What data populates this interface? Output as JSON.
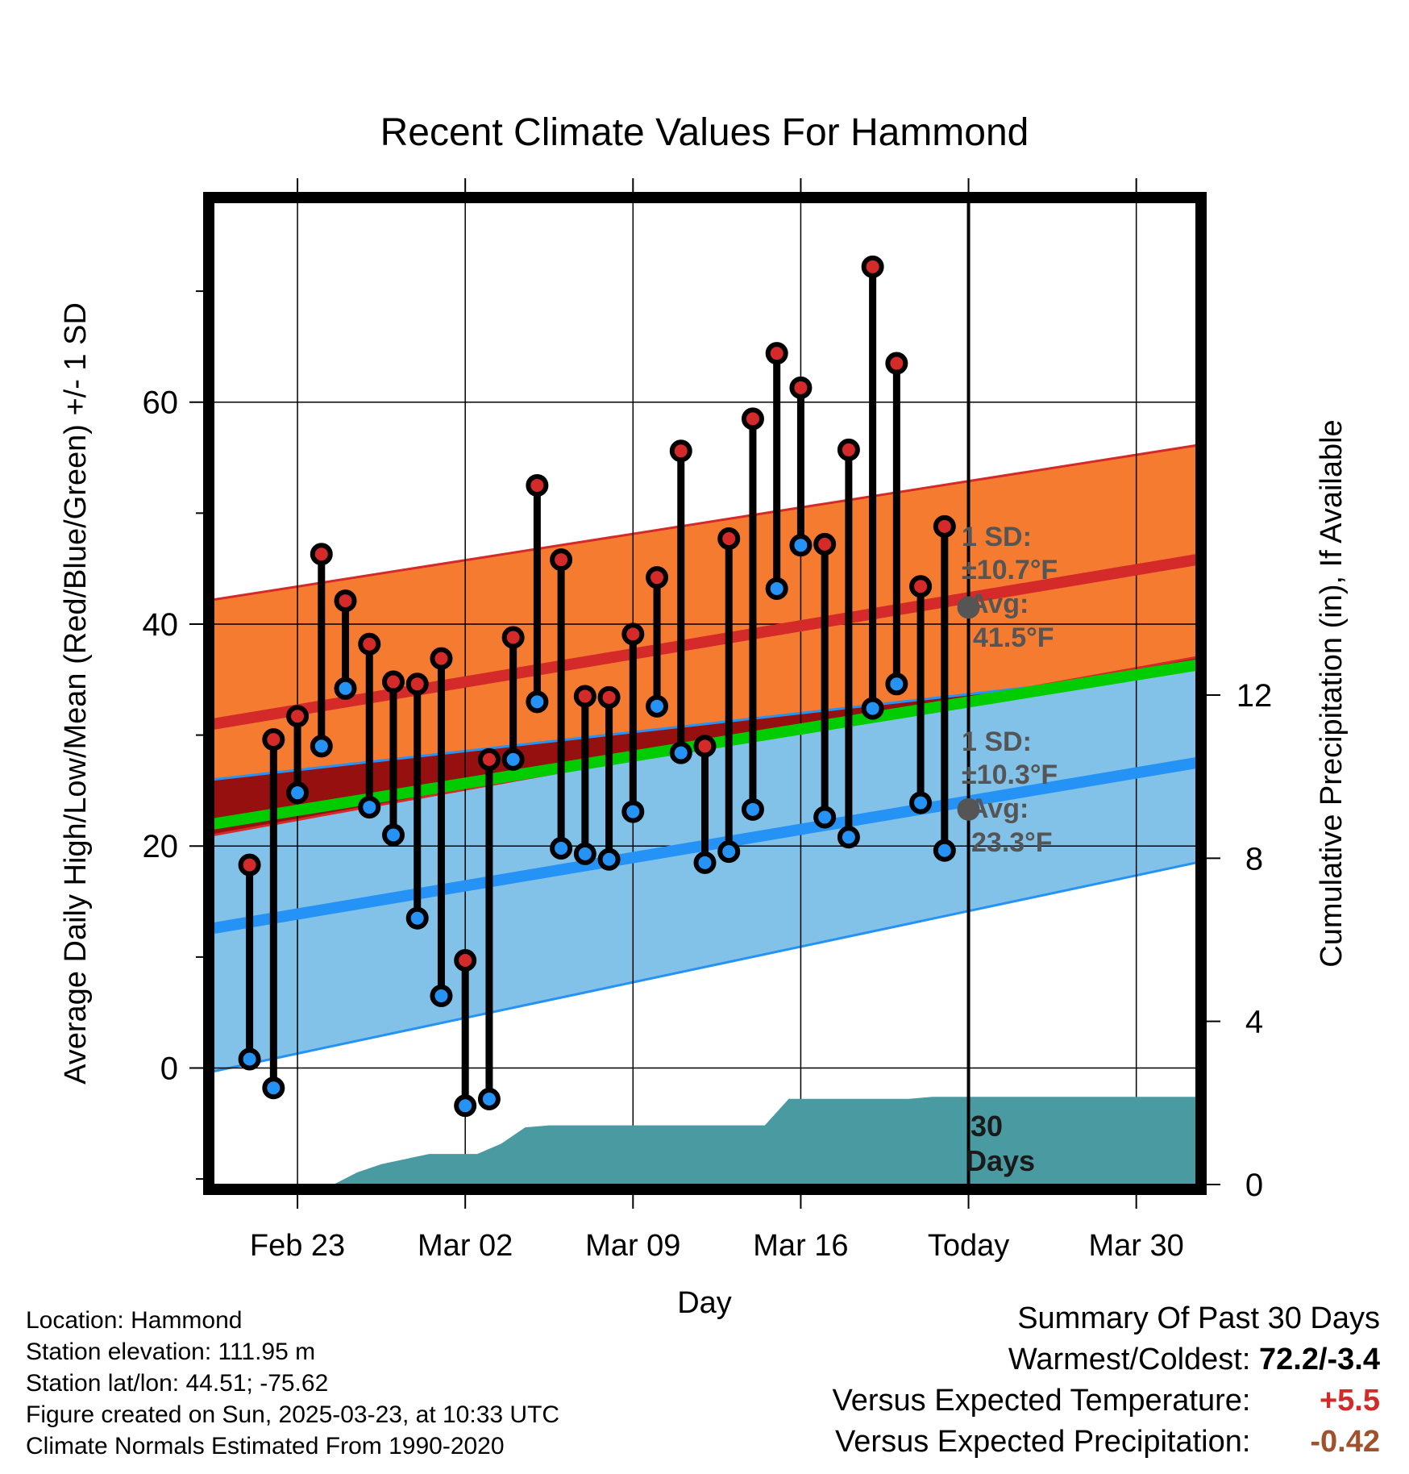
{
  "chart_data": {
    "type": "line",
    "title": "Recent Climate Values For Hammond",
    "xlabel": "Day",
    "ylabel_left": "Average Daily High/Low/Mean (Red/Blue/Green) +/- 1 SD",
    "ylabel_right": "Cumulative Precipitation (in), If Available",
    "ylim_left": [
      -10.5,
      78
    ],
    "ylim_right": [
      0,
      24.08
    ],
    "xlim_days": [
      -31.5,
      9.5
    ],
    "grid": true,
    "yticks_left": [
      0,
      20,
      40,
      60
    ],
    "yticks_right": [
      0,
      4,
      8,
      12
    ],
    "xticks": [
      {
        "day": -28,
        "label": "Feb 23"
      },
      {
        "day": -21,
        "label": "Mar 02"
      },
      {
        "day": -14,
        "label": "Mar 09"
      },
      {
        "day": -7,
        "label": "Mar 16"
      },
      {
        "day": 0,
        "label": "Today"
      },
      {
        "day": 7,
        "label": "Mar 30"
      }
    ],
    "normals": {
      "x_range_days": [
        -31.5,
        9.5
      ],
      "high_mean": [
        31.0,
        45.8
      ],
      "high_upper": [
        42.2,
        56.1
      ],
      "high_lower": [
        21.0,
        37.0
      ],
      "low_mean": [
        12.6,
        27.5
      ],
      "low_upper": [
        26.0,
        36.0
      ],
      "low_lower": [
        -0.3,
        18.5
      ],
      "mean": [
        22.0,
        36.3
      ],
      "colors": {
        "high_band": "#f47b30",
        "high_line": "#d42a2a",
        "low_band": "#82c2e8",
        "low_line": "#2593f5",
        "mean_line": "#00cc00",
        "overlap": "#961010"
      }
    },
    "daily": [
      {
        "day": -30,
        "high": 18.3,
        "low": 0.8
      },
      {
        "day": -29,
        "high": 29.6,
        "low": -1.8
      },
      {
        "day": -28,
        "high": 31.7,
        "low": 24.8
      },
      {
        "day": -27,
        "high": 46.3,
        "low": 29.0
      },
      {
        "day": -26,
        "high": 42.1,
        "low": 34.2
      },
      {
        "day": -25,
        "high": 38.2,
        "low": 23.5
      },
      {
        "day": -24,
        "high": 34.8,
        "low": 21.0
      },
      {
        "day": -23,
        "high": 34.6,
        "low": 13.5
      },
      {
        "day": -22,
        "high": 36.9,
        "low": 6.5
      },
      {
        "day": -21,
        "high": 9.7,
        "low": -3.4
      },
      {
        "day": -20,
        "high": 27.8,
        "low": -2.8
      },
      {
        "day": -19,
        "high": 38.8,
        "low": 27.8
      },
      {
        "day": -18,
        "high": 52.5,
        "low": 33.0
      },
      {
        "day": -17,
        "high": 45.8,
        "low": 19.8
      },
      {
        "day": -16,
        "high": 33.5,
        "low": 19.3
      },
      {
        "day": -15,
        "high": 33.4,
        "low": 18.8
      },
      {
        "day": -14,
        "high": 39.1,
        "low": 23.1
      },
      {
        "day": -13,
        "high": 44.2,
        "low": 32.6
      },
      {
        "day": -12,
        "high": 55.6,
        "low": 28.4
      },
      {
        "day": -11,
        "high": 29.0,
        "low": 18.5
      },
      {
        "day": -10,
        "high": 47.7,
        "low": 19.5
      },
      {
        "day": -9,
        "high": 58.5,
        "low": 23.3
      },
      {
        "day": -8,
        "high": 64.4,
        "low": 43.2
      },
      {
        "day": -7,
        "high": 61.3,
        "low": 47.1
      },
      {
        "day": -6,
        "high": 47.2,
        "low": 22.6
      },
      {
        "day": -5,
        "high": 55.7,
        "low": 20.8
      },
      {
        "day": -4,
        "high": 72.2,
        "low": 32.4
      },
      {
        "day": -3,
        "high": 63.5,
        "low": 34.6
      },
      {
        "day": -2,
        "high": 43.4,
        "low": 23.9
      },
      {
        "day": -1,
        "high": 48.8,
        "low": 19.6
      }
    ],
    "precip_cumulative": [
      {
        "day": -26.5,
        "value": 0.0
      },
      {
        "day": -25.5,
        "value": 0.3
      },
      {
        "day": -24.5,
        "value": 0.5
      },
      {
        "day": -22.5,
        "value": 0.75
      },
      {
        "day": -20.5,
        "value": 0.75
      },
      {
        "day": -19.5,
        "value": 1.0
      },
      {
        "day": -18.5,
        "value": 1.4
      },
      {
        "day": -17.5,
        "value": 1.45
      },
      {
        "day": -8.5,
        "value": 1.45
      },
      {
        "day": -7.5,
        "value": 2.1
      },
      {
        "day": -2.5,
        "value": 2.1
      },
      {
        "day": -1.5,
        "value": 2.15
      },
      {
        "day": 9.5,
        "value": 2.15
      }
    ],
    "precip_color": "#4a9aa2",
    "today_marker": {
      "day": 0,
      "high_sd_label": "1 SD:",
      "high_sd_value": "±10.7°F",
      "high_avg_label": "Avg:",
      "high_avg_value": "41.5°F",
      "high_avg": 41.5,
      "low_sd_label": "1 SD:",
      "low_sd_value": "±10.3°F",
      "low_avg_label": "Avg:",
      "low_avg_value": "23.3°F",
      "low_avg": 23.3
    },
    "period_label_line1": "30",
    "period_label_line2": "Days"
  },
  "footer": {
    "location": "Location: Hammond",
    "elevation": "Station elevation: 111.95 m",
    "latlon": "Station lat/lon: 44.51; -75.62",
    "created": "Figure created on Sun, 2025-03-23, at 10:33 UTC",
    "normals": "Climate Normals Estimated From 1990-2020"
  },
  "summary": {
    "heading": "Summary Of Past 30 Days",
    "warmest_coldest_label": "Warmest/Coldest:",
    "warmest_coldest_value": "72.2/-3.4",
    "temp_label": "Versus Expected Temperature:",
    "temp_value": "+5.5",
    "temp_color": "#d42a2a",
    "precip_label": "Versus Expected Precipitation:",
    "precip_value": "-0.42",
    "precip_color": "#a0522d"
  }
}
